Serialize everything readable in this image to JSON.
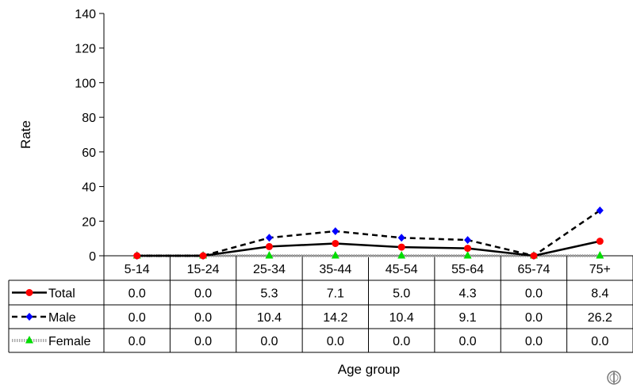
{
  "chart_data": {
    "type": "line",
    "xlabel": "Age group",
    "ylabel": "Rate",
    "ylim": [
      0,
      140
    ],
    "yticks": [
      0,
      20,
      40,
      60,
      80,
      100,
      120,
      140
    ],
    "grid": false,
    "legend_placement": "table-rows-below",
    "categories": [
      "5-14",
      "15-24",
      "25-34",
      "35-44",
      "45-54",
      "55-64",
      "65-74",
      "75+"
    ],
    "series": [
      {
        "name": "Total",
        "values": [
          0.0,
          0.0,
          5.3,
          7.1,
          5.0,
          4.3,
          0.0,
          8.4
        ],
        "labels": [
          "0.0",
          "0.0",
          "5.3",
          "7.1",
          "5.0",
          "4.3",
          "0.0",
          "8.4"
        ],
        "color": "#ff0000",
        "line_color": "#000000",
        "marker": "circle",
        "line": "solid"
      },
      {
        "name": "Male",
        "values": [
          0.0,
          0.0,
          10.4,
          14.2,
          10.4,
          9.1,
          0.0,
          26.2
        ],
        "labels": [
          "0.0",
          "0.0",
          "10.4",
          "14.2",
          "10.4",
          "9.1",
          "0.0",
          "26.2"
        ],
        "color": "#0000ff",
        "line_color": "#000000",
        "marker": "diamond",
        "line": "dashed"
      },
      {
        "name": "Female",
        "values": [
          0.0,
          0.0,
          0.0,
          0.0,
          0.0,
          0.0,
          0.0,
          0.0
        ],
        "labels": [
          "0.0",
          "0.0",
          "0.0",
          "0.0",
          "0.0",
          "0.0",
          "0.0",
          "0.0"
        ],
        "color": "#00dd00",
        "line_color": "#aaaaaa",
        "marker": "triangle",
        "line": "dotted"
      }
    ]
  },
  "logo": {
    "icon": "who-emblem-icon"
  }
}
